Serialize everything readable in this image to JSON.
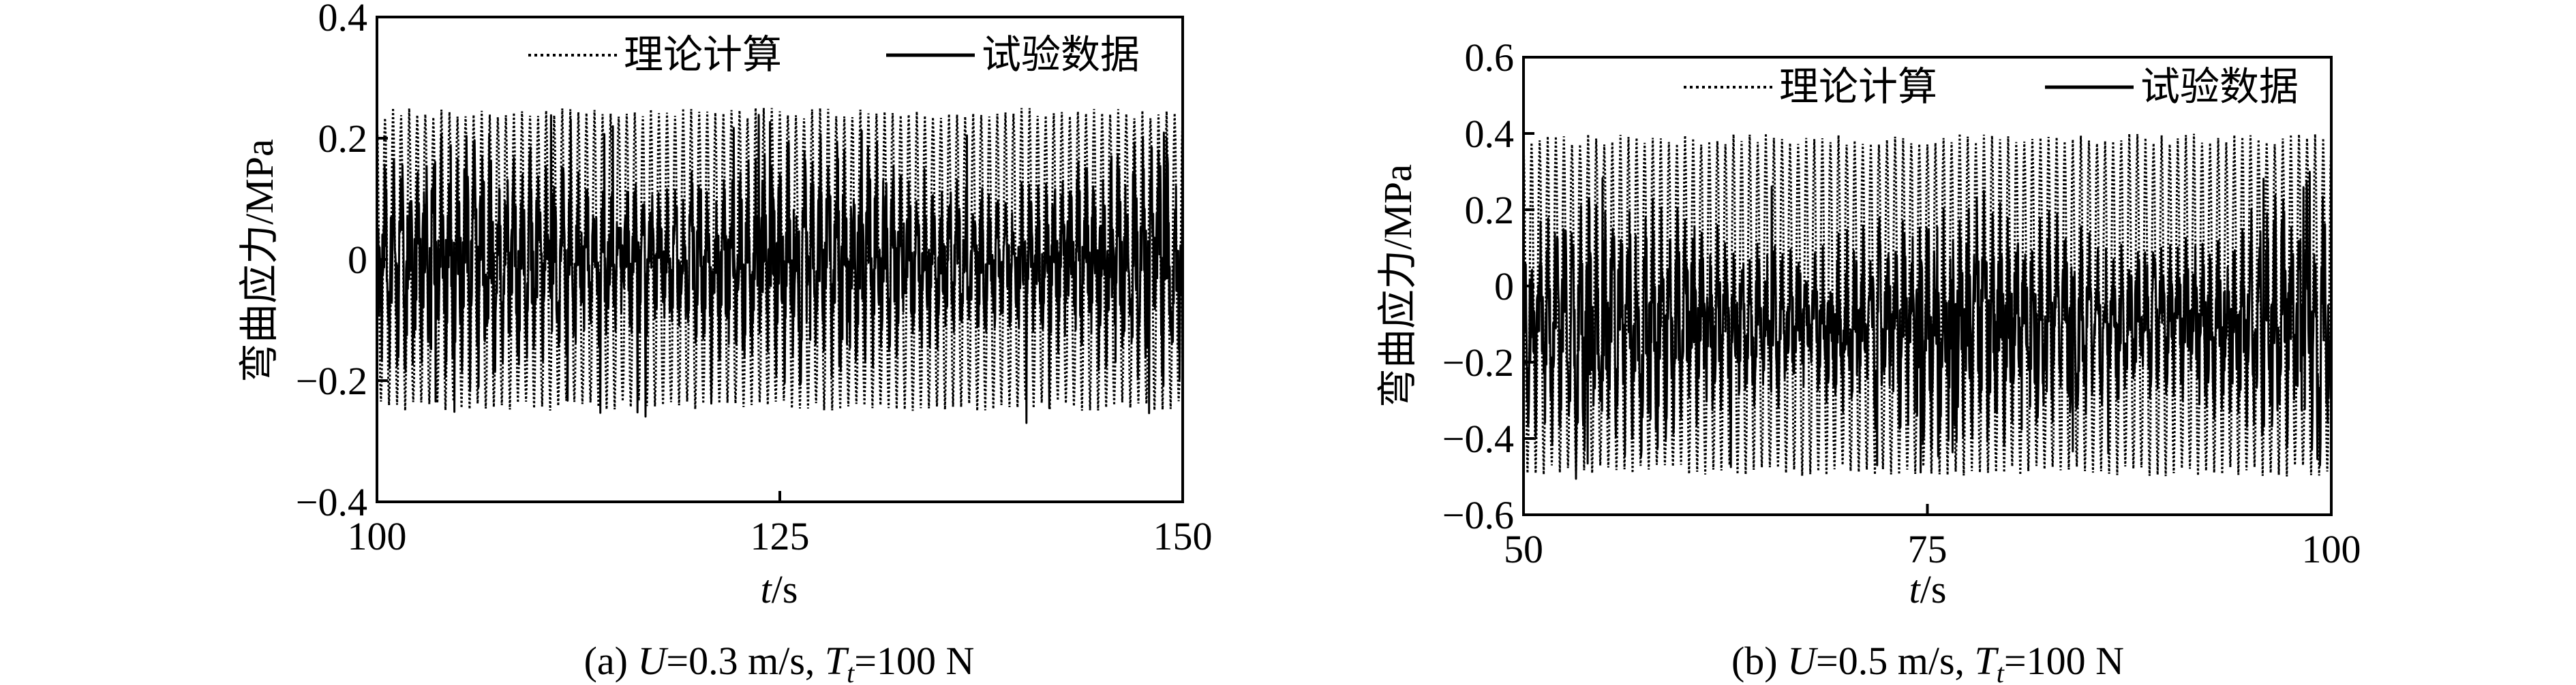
{
  "chart_data": [
    {
      "type": "line",
      "panel_caption": "(a) U=0.3 m/s, Tt=100 N",
      "caption_parts": {
        "prefix": "(a) ",
        "u_symbol": "U",
        "u_value": "=0.3 m/s, ",
        "t_symbol": "T",
        "t_sub": "t",
        "t_value": "=100 N"
      },
      "ylabel": "弯曲应力/MPa",
      "xlabel_italic": "t",
      "xlabel_unit": "/s",
      "xlim": [
        100,
        150
      ],
      "ylim": [
        -0.4,
        0.4
      ],
      "xticks": [
        100,
        125,
        150
      ],
      "yticks": [
        -0.4,
        -0.2,
        0,
        0.2,
        0.4
      ],
      "xtick_labels": [
        "100",
        "125",
        "150"
      ],
      "ytick_labels": [
        "−0.4",
        "−0.2",
        "0",
        "0.2",
        "0.4"
      ],
      "legend": {
        "position": "top",
        "entries": [
          "理论计算",
          "试验数据"
        ]
      },
      "grid": false,
      "series": [
        {
          "name": "理论计算",
          "style": "dotted",
          "color": "#000000",
          "description": "regular sinusoidal oscillation about 0",
          "amplitude": 0.25,
          "offset": 0.0,
          "period": 0.5
        },
        {
          "name": "试验数据",
          "style": "solid",
          "color": "#000000",
          "description": "irregular oscillation about 0, peaks to about ±0.25",
          "typical_range": [
            -0.17,
            0.17
          ],
          "max": 0.24,
          "min": -0.27,
          "offset": 0.0
        }
      ]
    },
    {
      "type": "line",
      "panel_caption": "(b) U=0.5 m/s, Tt=100 N",
      "caption_parts": {
        "prefix": "(b) ",
        "u_symbol": "U",
        "u_value": "=0.5 m/s, ",
        "t_symbol": "T",
        "t_sub": "t",
        "t_value": "=100 N"
      },
      "ylabel": "弯曲应力/MPa",
      "xlabel_italic": "t",
      "xlabel_unit": "/s",
      "xlim": [
        50,
        100
      ],
      "ylim": [
        -0.6,
        0.6
      ],
      "xticks": [
        50,
        75,
        100
      ],
      "yticks": [
        -0.6,
        -0.4,
        -0.2,
        0,
        0.2,
        0.4,
        0.6
      ],
      "xtick_labels": [
        "50",
        "75",
        "100"
      ],
      "ytick_labels": [
        "−0.6",
        "−0.4",
        "−0.2",
        "0",
        "0.2",
        "0.4",
        "0.6"
      ],
      "legend": {
        "position": "top",
        "entries": [
          "理论计算",
          "试验数据"
        ]
      },
      "grid": false,
      "series": [
        {
          "name": "理论计算",
          "style": "dotted",
          "color": "#000000",
          "description": "regular sinusoidal oscillation about -0.05",
          "amplitude": 0.45,
          "offset": -0.05,
          "period": 0.5
        },
        {
          "name": "试验数据",
          "style": "solid",
          "color": "#000000",
          "description": "irregular oscillation about -0.1, peaks 0.3 to -0.5",
          "typical_range": [
            -0.38,
            0.18
          ],
          "max": 0.3,
          "min": -0.51,
          "offset": -0.1
        }
      ]
    }
  ]
}
